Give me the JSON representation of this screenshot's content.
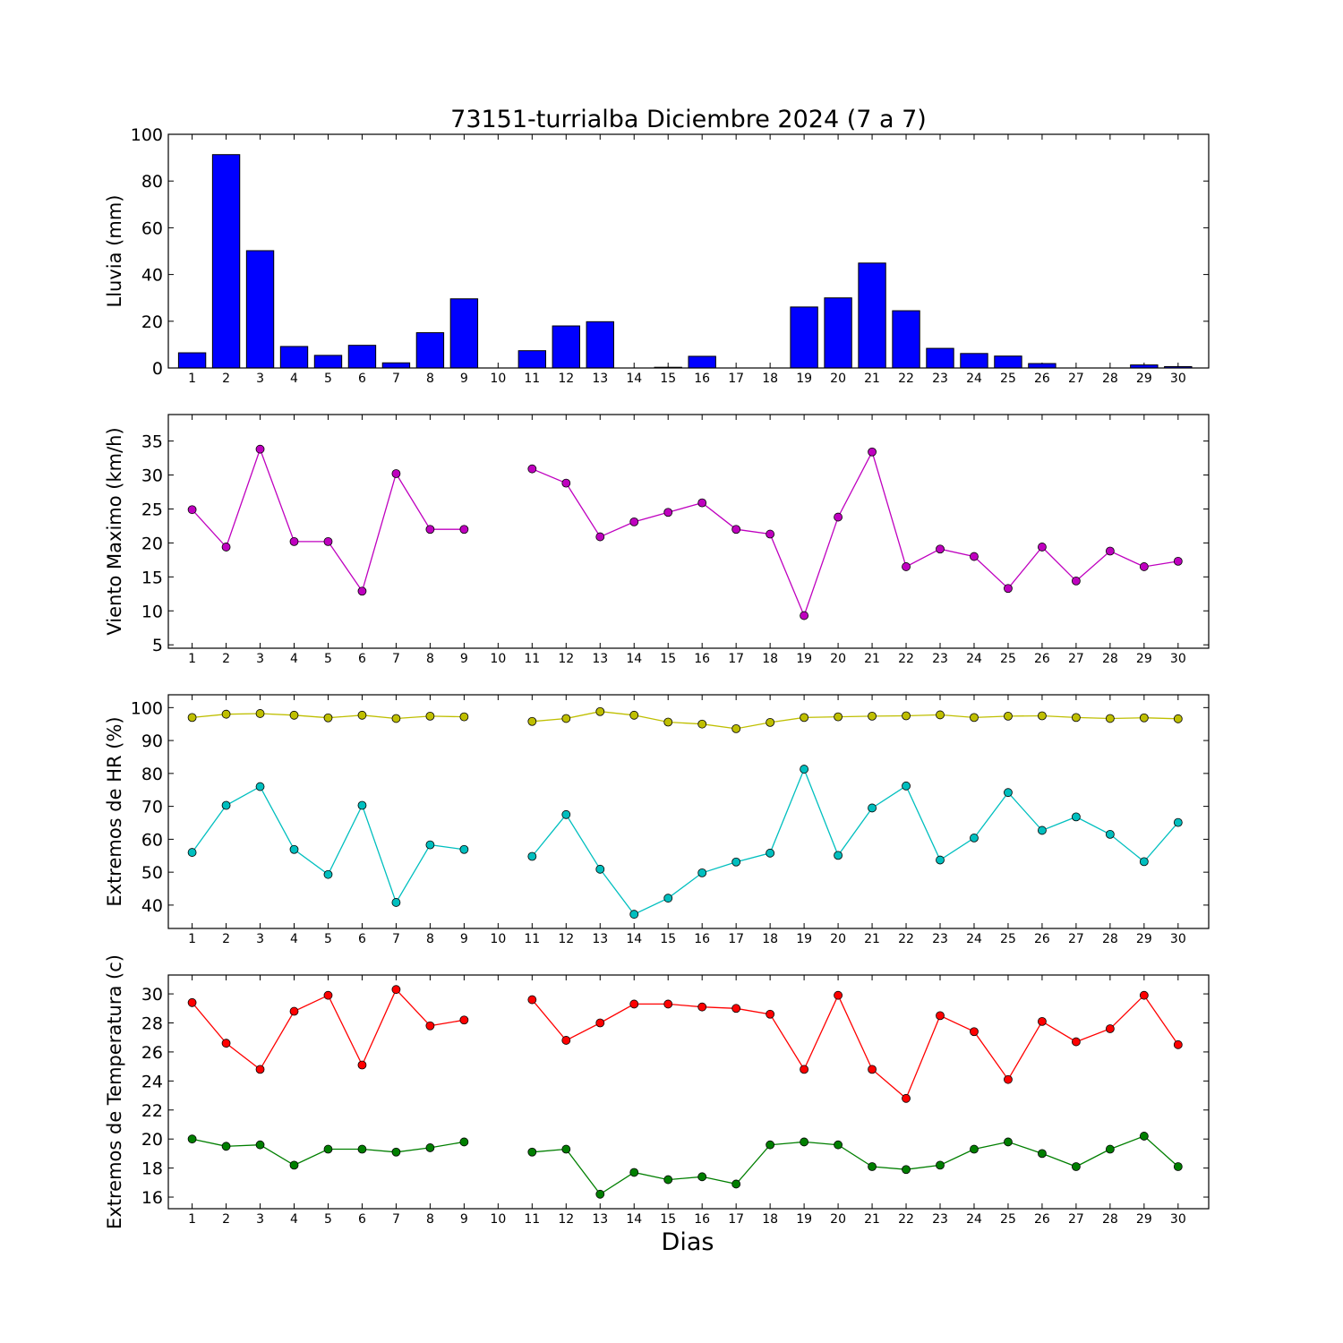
{
  "figure": {
    "title": "73151-turrialba Diciembre 2024  (7 a 7)",
    "xlabel": "Dias"
  },
  "chart_data": [
    {
      "type": "bar",
      "ylabel": "Lluvia (mm)",
      "categories": [
        "1",
        "2",
        "3",
        "4",
        "5",
        "6",
        "7",
        "8",
        "9",
        "10",
        "11",
        "12",
        "13",
        "14",
        "15",
        "16",
        "17",
        "18",
        "19",
        "20",
        "21",
        "22",
        "23",
        "24",
        "25",
        "26",
        "27",
        "28",
        "29",
        "30"
      ],
      "values": [
        6.5,
        91.3,
        50.2,
        9.2,
        5.4,
        9.7,
        2.2,
        15.1,
        29.6,
        0,
        7.4,
        18.0,
        19.8,
        0,
        0.3,
        5.0,
        0,
        0,
        26.1,
        30.0,
        44.9,
        24.5,
        8.4,
        6.2,
        5.1,
        1.9,
        0,
        0,
        1.3,
        0.6
      ],
      "ylim": [
        0,
        100
      ],
      "yticks": [
        0,
        20,
        40,
        60,
        80,
        100
      ],
      "color": "#0000ff",
      "grid": false
    },
    {
      "type": "line",
      "ylabel": "Viento Maximo (km/h)",
      "x": [
        1,
        2,
        3,
        4,
        5,
        6,
        7,
        8,
        9,
        10,
        11,
        12,
        13,
        14,
        15,
        16,
        17,
        18,
        19,
        20,
        21,
        22,
        23,
        24,
        25,
        26,
        27,
        28,
        29,
        30
      ],
      "series": [
        {
          "color": "#bf00bf",
          "values": [
            24.9,
            19.4,
            33.8,
            20.2,
            20.2,
            12.9,
            30.2,
            22.0,
            22.0,
            null,
            30.9,
            28.8,
            20.9,
            23.1,
            24.5,
            25.9,
            22.0,
            21.3,
            9.3,
            23.8,
            33.4,
            16.5,
            19.1,
            18.0,
            13.3,
            19.4,
            14.4,
            18.8,
            16.5,
            17.3
          ]
        }
      ],
      "ylim": [
        4.5,
        38.9
      ],
      "yticks": [
        5,
        10,
        15,
        20,
        25,
        30,
        35
      ],
      "grid": false
    },
    {
      "type": "line",
      "ylabel": "Extremos de HR (%)",
      "x": [
        1,
        2,
        3,
        4,
        5,
        6,
        7,
        8,
        9,
        10,
        11,
        12,
        13,
        14,
        15,
        16,
        17,
        18,
        19,
        20,
        21,
        22,
        23,
        24,
        25,
        26,
        27,
        28,
        29,
        30
      ],
      "series": [
        {
          "color": "#bfbf00",
          "values": [
            97.0,
            98.0,
            98.2,
            97.7,
            96.9,
            97.7,
            96.7,
            97.4,
            97.2,
            null,
            95.8,
            96.7,
            98.8,
            97.7,
            95.6,
            95.0,
            93.6,
            95.5,
            97.0,
            97.2,
            97.4,
            97.5,
            97.8,
            97.0,
            97.4,
            97.5,
            97.0,
            96.7,
            96.9,
            96.6
          ]
        },
        {
          "color": "#00bfbf",
          "values": [
            56.0,
            70.3,
            76.0,
            56.9,
            49.3,
            70.3,
            40.8,
            58.3,
            56.9,
            null,
            54.8,
            67.5,
            50.9,
            37.2,
            42.1,
            49.8,
            53.1,
            55.8,
            81.3,
            55.1,
            69.5,
            76.2,
            53.7,
            60.4,
            74.2,
            62.7,
            66.8,
            61.5,
            53.2,
            65.1
          ]
        }
      ],
      "ylim": [
        32.9,
        103.9
      ],
      "yticks": [
        40,
        50,
        60,
        70,
        80,
        90,
        100
      ],
      "grid": false
    },
    {
      "type": "line",
      "ylabel": "Extremos de Temperatura (c)",
      "x": [
        1,
        2,
        3,
        4,
        5,
        6,
        7,
        8,
        9,
        10,
        11,
        12,
        13,
        14,
        15,
        16,
        17,
        18,
        19,
        20,
        21,
        22,
        23,
        24,
        25,
        26,
        27,
        28,
        29,
        30
      ],
      "series": [
        {
          "color": "#ff0000",
          "values": [
            29.4,
            26.6,
            24.8,
            28.8,
            29.9,
            25.1,
            30.3,
            27.8,
            28.2,
            null,
            29.6,
            26.8,
            28.0,
            29.3,
            29.3,
            29.1,
            29.0,
            28.6,
            24.8,
            29.9,
            24.8,
            22.8,
            28.5,
            27.4,
            24.1,
            28.1,
            26.7,
            27.6,
            29.9,
            26.5
          ]
        },
        {
          "color": "#007f00",
          "values": [
            20.0,
            19.5,
            19.6,
            18.2,
            19.3,
            19.3,
            19.1,
            19.4,
            19.8,
            null,
            19.1,
            19.3,
            16.2,
            17.7,
            17.2,
            17.4,
            16.9,
            19.6,
            19.8,
            19.6,
            18.1,
            17.9,
            18.2,
            19.3,
            19.8,
            19.0,
            18.1,
            19.3,
            20.2,
            18.1
          ]
        }
      ],
      "ylim": [
        15.2,
        31.3
      ],
      "yticks": [
        16,
        18,
        20,
        22,
        24,
        26,
        28,
        30
      ],
      "grid": false
    }
  ]
}
